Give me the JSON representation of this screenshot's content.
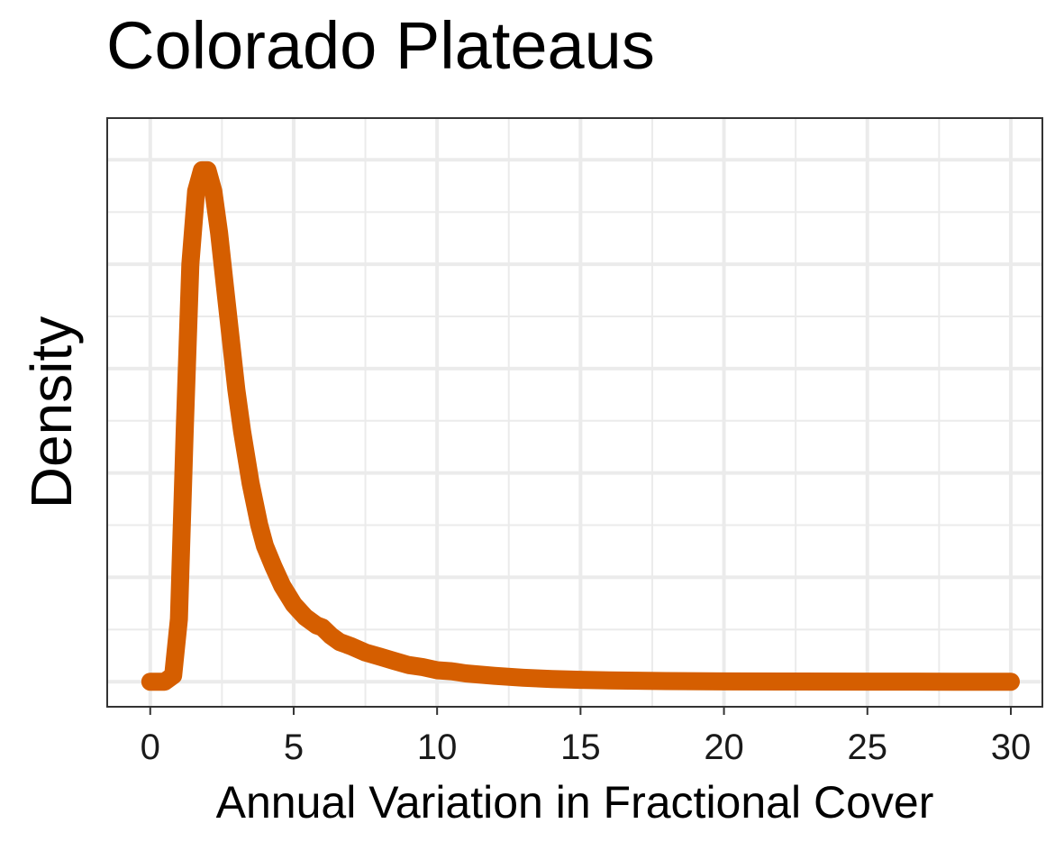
{
  "chart_data": {
    "type": "line",
    "title": "Colorado Plateaus",
    "xlabel": "Annual Variation in Fractional Cover",
    "ylabel": "Density",
    "xlim": [
      -1.5,
      31.1
    ],
    "ylim": [
      -0.012,
      0.27
    ],
    "x_ticks": [
      0,
      5,
      10,
      15,
      20,
      25,
      30
    ],
    "x_tick_labels": [
      "0",
      "5",
      "10",
      "15",
      "20",
      "25",
      "30"
    ],
    "y_ticks_visible": false,
    "grid": true,
    "legend": "none",
    "series": [
      {
        "color": "#D55E00",
        "x": [
          0,
          0.5,
          0.8,
          1.0,
          1.2,
          1.4,
          1.6,
          1.8,
          2.0,
          2.2,
          2.4,
          2.6,
          2.8,
          3.0,
          3.2,
          3.5,
          3.8,
          4.0,
          4.3,
          4.6,
          5.0,
          5.4,
          5.8,
          6.0,
          6.3,
          6.6,
          7.0,
          7.5,
          8.0,
          8.5,
          9.0,
          9.5,
          10.0,
          10.5,
          11.0,
          12.0,
          13.0,
          14.0,
          15.0,
          16.0,
          18.0,
          20.0,
          22.0,
          25.0,
          28.0,
          30.0
        ],
        "y": [
          0,
          0,
          0.003,
          0.03,
          0.12,
          0.2,
          0.235,
          0.245,
          0.245,
          0.235,
          0.215,
          0.19,
          0.165,
          0.14,
          0.12,
          0.095,
          0.075,
          0.065,
          0.055,
          0.046,
          0.037,
          0.031,
          0.027,
          0.026,
          0.022,
          0.019,
          0.017,
          0.014,
          0.012,
          0.01,
          0.008,
          0.007,
          0.0055,
          0.005,
          0.004,
          0.0028,
          0.0019,
          0.0013,
          0.0009,
          0.0006,
          0.0003,
          0.00015,
          0.0001,
          5e-05,
          2e-05,
          0
        ]
      }
    ]
  },
  "colors": {
    "series": "#D55E00",
    "grid": "#EBEBEB",
    "panel_border": "#333333",
    "background": "#FFFFFF"
  }
}
